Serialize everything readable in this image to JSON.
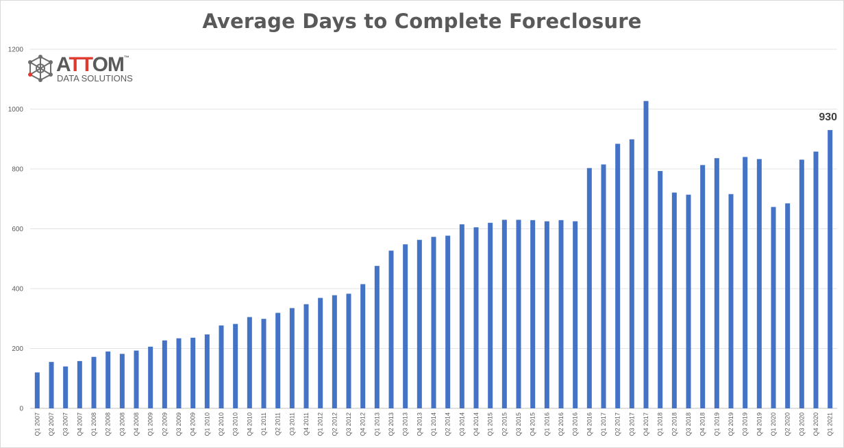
{
  "chart_data": {
    "type": "bar",
    "title": "Average Days to Complete Foreclosure",
    "xlabel": "",
    "ylabel": "",
    "ylim": [
      0,
      1200
    ],
    "yticks": [
      0,
      200,
      400,
      600,
      800,
      1000,
      1200
    ],
    "grid": true,
    "legend": "none",
    "bar_color": "#4472c4",
    "categories": [
      "Q1 2007",
      "Q2 2007",
      "Q3 2007",
      "Q4 2007",
      "Q1 2008",
      "Q2 2008",
      "Q3 2008",
      "Q4 2008",
      "Q1 2009",
      "Q2 2009",
      "Q3 2009",
      "Q4 2009",
      "Q1 2010",
      "Q2 2010",
      "Q3 2010",
      "Q4 2010",
      "Q1 2011",
      "Q2 2011",
      "Q3 2011",
      "Q4 2011",
      "Q1 2012",
      "Q2 2012",
      "Q3 2012",
      "Q4 2012",
      "Q1 2013",
      "Q2 2013",
      "Q3 2013",
      "Q4 2013",
      "Q1 2014",
      "Q2 2014",
      "Q3 2014",
      "Q4 2014",
      "Q1 2015",
      "Q2 2015",
      "Q3 2015",
      "Q4 2015",
      "Q1 2016",
      "Q2 2016",
      "Q3 2016",
      "Q4 2016",
      "Q1 2017",
      "Q2 2017",
      "Q3 2017",
      "Q4 2017",
      "Q1 2018",
      "Q2 2018",
      "Q3 2018",
      "Q4 2018",
      "Q1 2019",
      "Q2 2019",
      "Q3 2019",
      "Q4 2019",
      "Q1 2020",
      "Q2 2020",
      "Q3 2020",
      "Q4 2020",
      "Q1 2021"
    ],
    "values": [
      120,
      155,
      140,
      158,
      172,
      190,
      182,
      193,
      206,
      227,
      234,
      236,
      247,
      277,
      282,
      305,
      299,
      319,
      335,
      348,
      369,
      378,
      383,
      415,
      476,
      527,
      548,
      563,
      573,
      577,
      615,
      605,
      620,
      630,
      630,
      629,
      625,
      629,
      625,
      803,
      815,
      884,
      899,
      1027,
      793,
      721,
      714,
      813,
      836,
      716,
      840,
      833,
      673,
      685,
      831,
      858,
      930
    ],
    "annotations": [
      {
        "category": "Q1 2021",
        "text": "930"
      }
    ]
  },
  "logo": {
    "word_a": "A",
    "word_tt": "TT",
    "word_om": "OM",
    "tm": "™",
    "subtitle": "DATA SOLUTIONS",
    "accent_color": "#e03a2f",
    "text_color": "#5a5a5a"
  }
}
